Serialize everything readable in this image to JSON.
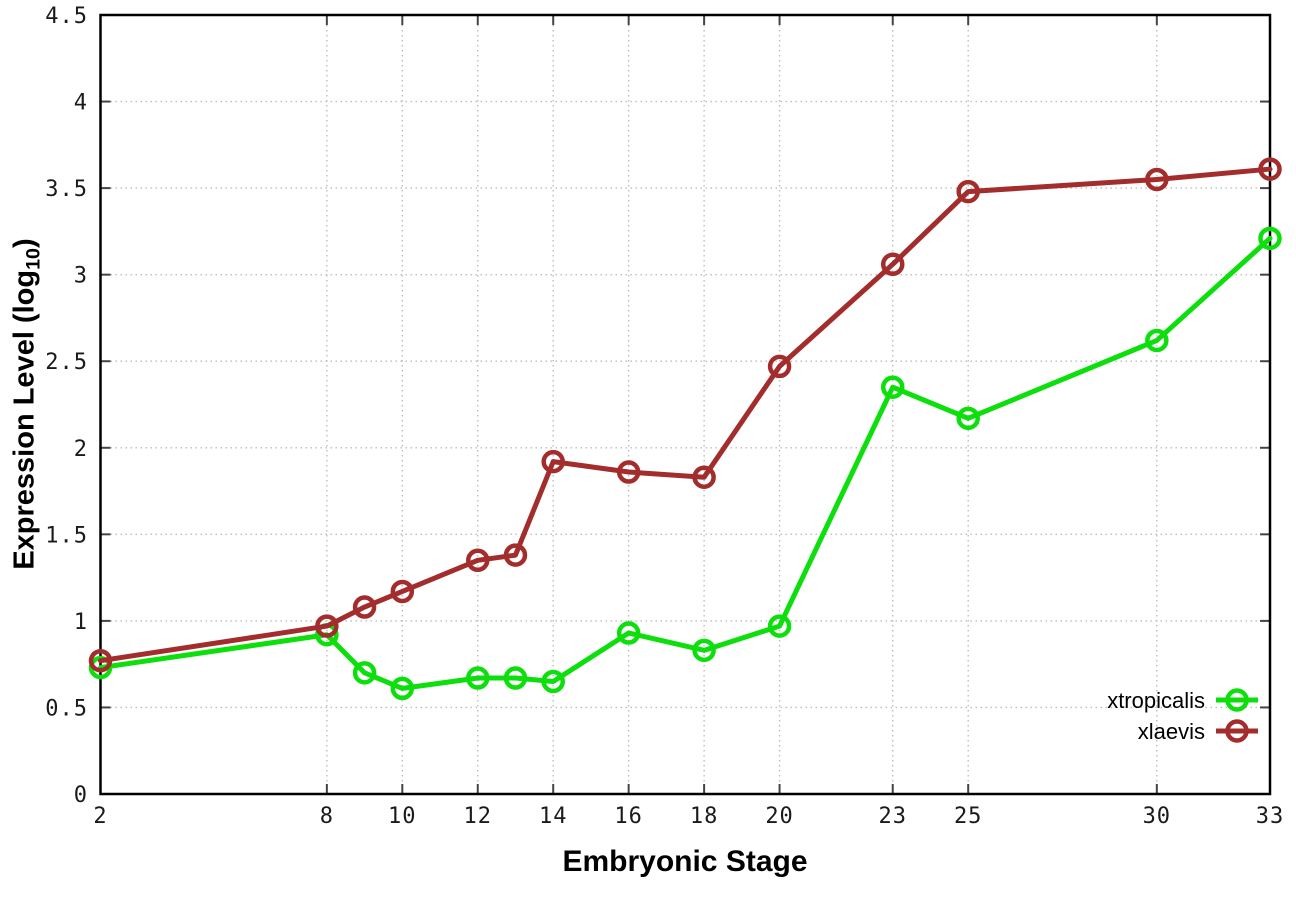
{
  "figure": {
    "background_color": "#ffffff",
    "xlabel": "Embryonic Stage",
    "ylabel_prefix": "Expression Level (log",
    "ylabel_sub": "10",
    "ylabel_suffix": ")"
  },
  "chart_data": {
    "type": "line",
    "title": "",
    "xlabel": "Embryonic Stage",
    "ylabel": "Expression Level (log10)",
    "x": [
      2,
      8,
      9,
      10,
      12,
      13,
      14,
      16,
      18,
      20,
      23,
      25,
      30,
      33
    ],
    "series": [
      {
        "name": "xtropicalis",
        "color": "#0ddf0d",
        "marker": "open-circle",
        "values": [
          0.73,
          0.92,
          0.7,
          0.61,
          0.67,
          0.67,
          0.65,
          0.93,
          0.83,
          0.97,
          2.35,
          2.17,
          2.62,
          3.21
        ]
      },
      {
        "name": "xlaevis",
        "color": "#a32c2c",
        "marker": "open-circle",
        "values": [
          0.77,
          0.97,
          1.08,
          1.17,
          1.35,
          1.38,
          1.92,
          1.86,
          1.83,
          2.47,
          3.06,
          3.48,
          3.55,
          3.61
        ]
      }
    ],
    "xticks": [
      2,
      8,
      10,
      12,
      14,
      16,
      18,
      20,
      23,
      25,
      30,
      33
    ],
    "yticks": [
      0,
      0.5,
      1,
      1.5,
      2,
      2.5,
      3,
      3.5,
      4,
      4.5
    ],
    "xlim": [
      2,
      33
    ],
    "ylim": [
      0,
      4.5
    ],
    "grid": true,
    "grid_style": "dotted",
    "grid_color": "#bdbdbd",
    "border_color": "#000000",
    "tick_color": "#444444",
    "tick_label_color": "#1a1a1a",
    "legend_position": "inside-bottom-right"
  }
}
